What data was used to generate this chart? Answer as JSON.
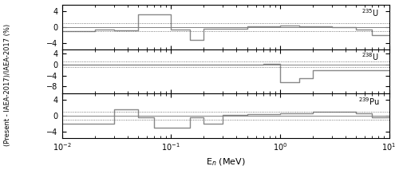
{
  "xlabel": "E$_n$ (MeV)",
  "ylabel": "(Present - IAEA-2017)/IAEA-2017 (%)",
  "panels": [
    {
      "label": "$^{235}$U",
      "ylim": [
        -5.5,
        5.5
      ],
      "yticks": [
        -4,
        0,
        4
      ],
      "dotted_lines": [
        1,
        -1
      ],
      "hline": 0,
      "edges": [
        0.01,
        0.02,
        0.03,
        0.05,
        0.07,
        0.1,
        0.15,
        0.2,
        0.3,
        0.5,
        0.7,
        1.0,
        1.5,
        2.0,
        3.0,
        5.0,
        7.0,
        10.0
      ],
      "values": [
        -1.0,
        -0.5,
        -0.8,
        3.2,
        3.2,
        -0.5,
        -3.2,
        -0.3,
        -0.3,
        0.3,
        0.3,
        0.5,
        0.2,
        0.3,
        0.1,
        -0.5,
        -2.0
      ]
    },
    {
      "label": "$^{238}$U",
      "ylim": [
        -10.5,
        5.5
      ],
      "yticks": [
        -8,
        -4,
        0,
        4
      ],
      "dotted_lines": [
        1,
        -1
      ],
      "hline": 0,
      "edges": [
        0.01,
        0.02,
        0.03,
        0.05,
        0.07,
        0.1,
        0.15,
        0.2,
        0.3,
        0.5,
        0.7,
        1.0,
        1.5,
        2.0,
        3.0,
        5.0,
        7.0,
        10.0
      ],
      "values": [
        0.0,
        0.0,
        0.0,
        0.0,
        0.0,
        0.0,
        0.0,
        0.0,
        0.0,
        0.0,
        0.1,
        -6.5,
        -5.0,
        -2.0,
        -2.0,
        -2.0,
        -2.0
      ]
    },
    {
      "label": "$^{239}$Pu",
      "ylim": [
        -5.5,
        5.5
      ],
      "yticks": [
        -4,
        0,
        4
      ],
      "dotted_lines": [
        1,
        -1
      ],
      "hline": 0,
      "edges": [
        0.01,
        0.02,
        0.03,
        0.05,
        0.07,
        0.1,
        0.15,
        0.2,
        0.3,
        0.5,
        0.7,
        1.0,
        1.5,
        2.0,
        3.0,
        5.0,
        7.0,
        10.0
      ],
      "values": [
        -2.0,
        -2.0,
        1.5,
        -0.5,
        -3.0,
        -3.0,
        -0.5,
        -2.0,
        0.2,
        0.3,
        0.3,
        0.5,
        0.5,
        1.0,
        1.0,
        0.5,
        -0.5
      ]
    }
  ],
  "line_color": "#888888",
  "line_width": 1.0,
  "dotted_color": "#555555",
  "bg_color": "#ffffff",
  "separator_color": "#444444"
}
